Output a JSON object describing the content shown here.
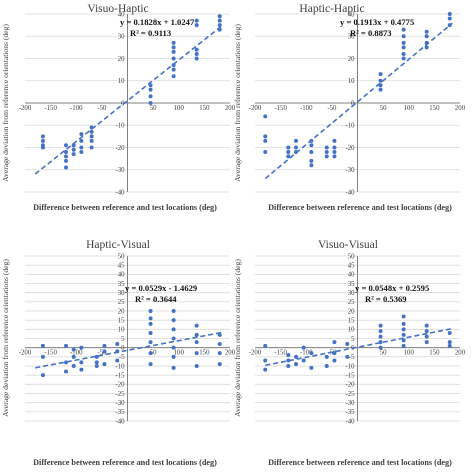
{
  "shared": {
    "ylabel": "Average deviation from reference orientations (deg)",
    "xlabel": "Difference between reference and test locations (deg)"
  },
  "chart_data": [
    {
      "type": "scatter",
      "title": "Visuo-Haptic",
      "xlabel": "Difference between reference and test locations (deg)",
      "ylabel": "Average deviation from reference orientations (deg)",
      "xlim": [
        -200,
        200
      ],
      "ylim": [
        -40,
        40
      ],
      "xticks": [
        -200,
        -150,
        -100,
        -50,
        0,
        50,
        100,
        150,
        200
      ],
      "yticks": [
        -40,
        -30,
        -20,
        -10,
        0,
        10,
        20,
        30,
        40
      ],
      "color": "#4472c4",
      "grid": true,
      "equation": "y = 0.1828x + 1.0247",
      "r2": "R² = 0.9113",
      "trend": {
        "slope": 0.1828,
        "intercept": 1.0247
      },
      "points": [
        [
          -165,
          -15
        ],
        [
          -165,
          -17
        ],
        [
          -165,
          -19
        ],
        [
          -165,
          -20
        ],
        [
          -120,
          -19
        ],
        [
          -120,
          -22
        ],
        [
          -120,
          -24
        ],
        [
          -120,
          -26
        ],
        [
          -120,
          -29
        ],
        [
          -105,
          -19
        ],
        [
          -105,
          -21
        ],
        [
          -105,
          -23
        ],
        [
          -90,
          -14
        ],
        [
          -90,
          -17
        ],
        [
          -90,
          -20
        ],
        [
          -90,
          -22
        ],
        [
          -70,
          -11
        ],
        [
          -70,
          -13
        ],
        [
          -70,
          -15
        ],
        [
          -70,
          -17
        ],
        [
          -70,
          -20
        ],
        [
          45,
          0
        ],
        [
          45,
          3
        ],
        [
          45,
          6
        ],
        [
          45,
          8
        ],
        [
          90,
          12
        ],
        [
          90,
          15
        ],
        [
          90,
          17
        ],
        [
          90,
          20
        ],
        [
          90,
          23
        ],
        [
          90,
          25
        ],
        [
          90,
          27
        ],
        [
          135,
          20
        ],
        [
          135,
          22
        ],
        [
          135,
          24
        ],
        [
          135,
          35
        ],
        [
          135,
          37
        ],
        [
          180,
          33
        ],
        [
          180,
          35
        ],
        [
          180,
          37
        ],
        [
          180,
          39
        ]
      ]
    },
    {
      "type": "scatter",
      "title": "Haptic-Haptic",
      "xlabel": "Difference between reference and test locations (deg)",
      "ylabel": "Average deviation from reference orientations (deg)",
      "xlim": [
        -200,
        200
      ],
      "ylim": [
        -40,
        40
      ],
      "xticks": [
        -200,
        -150,
        -100,
        -50,
        0,
        50,
        100,
        150,
        200
      ],
      "yticks": [
        -40,
        -30,
        -20,
        -10,
        0,
        10,
        20,
        30,
        40
      ],
      "color": "#4472c4",
      "grid": true,
      "equation": "y = 0.1913x + 0.4775",
      "r2": "R² = 0.8873",
      "trend": {
        "slope": 0.1913,
        "intercept": 0.4775
      },
      "points": [
        [
          -180,
          -6
        ],
        [
          -180,
          -15
        ],
        [
          -180,
          -17
        ],
        [
          -180,
          -22
        ],
        [
          -135,
          -20
        ],
        [
          -135,
          -22
        ],
        [
          -135,
          -24
        ],
        [
          -120,
          -17
        ],
        [
          -120,
          -20
        ],
        [
          -120,
          -22
        ],
        [
          -90,
          -17
        ],
        [
          -90,
          -19
        ],
        [
          -90,
          -22
        ],
        [
          -90,
          -26
        ],
        [
          -90,
          -28
        ],
        [
          -60,
          -20
        ],
        [
          -60,
          -22
        ],
        [
          -60,
          -24
        ],
        [
          -45,
          -17
        ],
        [
          -45,
          -20
        ],
        [
          -45,
          -22
        ],
        [
          -45,
          -24
        ],
        [
          45,
          6
        ],
        [
          45,
          8
        ],
        [
          45,
          10
        ],
        [
          45,
          13
        ],
        [
          90,
          20
        ],
        [
          90,
          22
        ],
        [
          90,
          25
        ],
        [
          90,
          27
        ],
        [
          90,
          30
        ],
        [
          90,
          33
        ],
        [
          135,
          25
        ],
        [
          135,
          27
        ],
        [
          135,
          30
        ],
        [
          135,
          32
        ],
        [
          180,
          35
        ],
        [
          180,
          38
        ],
        [
          180,
          40
        ]
      ]
    },
    {
      "type": "scatter",
      "title": "Haptic-Visual",
      "xlabel": "Difference between reference and test locations (deg)",
      "ylabel": "Average deviation from reference orientations (deg)",
      "xlim": [
        -200,
        200
      ],
      "ylim": [
        -40,
        50
      ],
      "xticks": [
        -200,
        -150,
        -100,
        -50,
        0,
        50,
        100,
        150,
        200
      ],
      "yticks": [
        -40,
        -35,
        -30,
        -25,
        -20,
        -15,
        -10,
        -5,
        0,
        5,
        10,
        15,
        20,
        25,
        30,
        35,
        40,
        45,
        50
      ],
      "color": "#4472c4",
      "grid": true,
      "equation": "y = 0.0529x - 1.4629",
      "r2": "R² = 0.3644",
      "trend": {
        "slope": 0.0529,
        "intercept": -1.4629
      },
      "points": [
        [
          -165,
          1
        ],
        [
          -165,
          -5
        ],
        [
          -165,
          -15
        ],
        [
          -120,
          1
        ],
        [
          -120,
          -8
        ],
        [
          -120,
          -13
        ],
        [
          -105,
          -1
        ],
        [
          -105,
          -5
        ],
        [
          -105,
          -10
        ],
        [
          -90,
          0
        ],
        [
          -90,
          -8
        ],
        [
          -90,
          -12
        ],
        [
          -60,
          -5
        ],
        [
          -60,
          -8
        ],
        [
          -60,
          -10
        ],
        [
          -45,
          1
        ],
        [
          -45,
          -2
        ],
        [
          -45,
          -9
        ],
        [
          -20,
          2
        ],
        [
          -20,
          -2
        ],
        [
          -20,
          -7
        ],
        [
          45,
          20
        ],
        [
          45,
          16
        ],
        [
          45,
          13
        ],
        [
          45,
          8
        ],
        [
          45,
          3
        ],
        [
          45,
          -3
        ],
        [
          45,
          -9
        ],
        [
          90,
          20
        ],
        [
          90,
          15
        ],
        [
          90,
          10
        ],
        [
          90,
          5
        ],
        [
          90,
          0
        ],
        [
          90,
          -5
        ],
        [
          90,
          -11
        ],
        [
          135,
          12
        ],
        [
          135,
          7
        ],
        [
          135,
          3
        ],
        [
          135,
          -3
        ],
        [
          135,
          -10
        ],
        [
          180,
          7
        ],
        [
          180,
          2
        ],
        [
          180,
          -3
        ],
        [
          180,
          -9
        ]
      ]
    },
    {
      "type": "scatter",
      "title": "Visuo-Visual",
      "xlabel": "Difference between reference and test locations (deg)",
      "ylabel": "Average deviation from reference orientations (deg)",
      "xlim": [
        -200,
        200
      ],
      "ylim": [
        -40,
        50
      ],
      "xticks": [
        -200,
        -150,
        -100,
        -50,
        0,
        50,
        100,
        150,
        200
      ],
      "yticks": [
        -40,
        -35,
        -30,
        -25,
        -20,
        -15,
        -10,
        -5,
        0,
        5,
        10,
        15,
        20,
        25,
        30,
        35,
        40,
        45,
        50
      ],
      "color": "#4472c4",
      "grid": true,
      "equation": "y = 0.0548x + 0.2595",
      "r2": "R² = 0.5369",
      "trend": {
        "slope": 0.0548,
        "intercept": 0.2595
      },
      "points": [
        [
          -180,
          -12
        ],
        [
          -180,
          -7
        ],
        [
          -180,
          1
        ],
        [
          -135,
          -4
        ],
        [
          -135,
          -7
        ],
        [
          -135,
          -10
        ],
        [
          -120,
          -5
        ],
        [
          -120,
          -9
        ],
        [
          -105,
          0
        ],
        [
          -105,
          -7
        ],
        [
          -90,
          -3
        ],
        [
          -90,
          -11
        ],
        [
          -60,
          -5
        ],
        [
          -60,
          -10
        ],
        [
          -45,
          3
        ],
        [
          -45,
          -3
        ],
        [
          -45,
          -7
        ],
        [
          -20,
          2
        ],
        [
          -20,
          -5
        ],
        [
          45,
          12
        ],
        [
          45,
          9
        ],
        [
          45,
          6
        ],
        [
          45,
          3
        ],
        [
          45,
          0
        ],
        [
          90,
          17
        ],
        [
          90,
          13
        ],
        [
          90,
          10
        ],
        [
          90,
          7
        ],
        [
          90,
          4
        ],
        [
          90,
          1
        ],
        [
          135,
          12
        ],
        [
          135,
          9
        ],
        [
          135,
          6
        ],
        [
          135,
          3
        ],
        [
          180,
          8
        ],
        [
          180,
          3
        ],
        [
          180,
          1
        ]
      ]
    }
  ]
}
